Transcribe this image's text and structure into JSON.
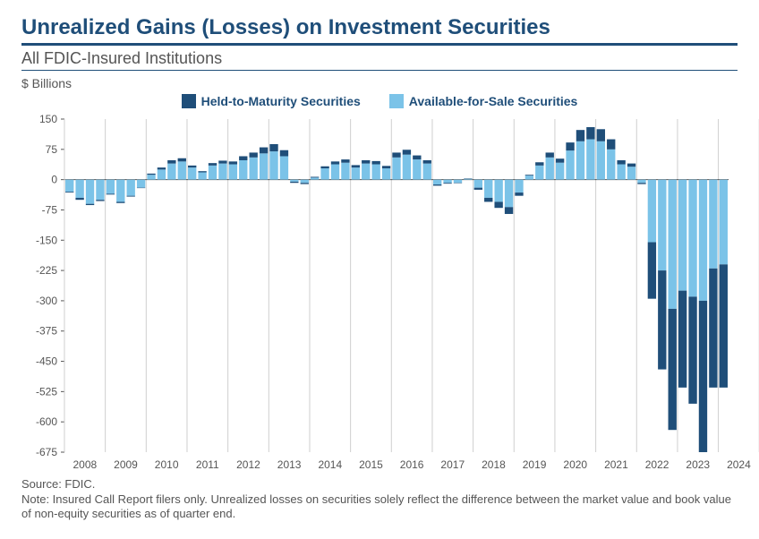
{
  "title": "Unrealized Gains (Losses) on Investment Securities",
  "subtitle": "All FDIC-Insured Institutions",
  "yaxis_title": "$ Billions",
  "legend": {
    "htm": {
      "label": "Held-to-Maturity Securities",
      "color": "#1f4e79"
    },
    "afs": {
      "label": "Available-for-Sale Securities",
      "color": "#7bc3e8"
    }
  },
  "footnote_source": "Source: FDIC.",
  "footnote_note": "Note: Insured Call Report filers only. Unrealized losses on securities solely reflect the difference between the market value and book value of non-equity securities as of quarter end.",
  "chart": {
    "type": "stacked_bar",
    "ylim": [
      -675,
      150
    ],
    "ytick_step": 75,
    "grid_color": "#cfcfcf",
    "background_color": "#ffffff",
    "axis_label_fontsize": 12,
    "axis_label_color": "#555555",
    "bar_gap_ratio": 0.18,
    "years": [
      2008,
      2009,
      2010,
      2011,
      2012,
      2013,
      2014,
      2015,
      2016,
      2017,
      2018,
      2019,
      2020,
      2021,
      2022,
      2023,
      2024
    ],
    "series": [
      {
        "afs": -30,
        "htm": -2
      },
      {
        "afs": -45,
        "htm": -5
      },
      {
        "afs": -60,
        "htm": -3
      },
      {
        "afs": -50,
        "htm": -3
      },
      {
        "afs": -35,
        "htm": -2
      },
      {
        "afs": -55,
        "htm": -3
      },
      {
        "afs": -40,
        "htm": -2
      },
      {
        "afs": -20,
        "htm": -1
      },
      {
        "afs": 12,
        "htm": 3
      },
      {
        "afs": 25,
        "htm": 5
      },
      {
        "afs": 40,
        "htm": 8
      },
      {
        "afs": 45,
        "htm": 8
      },
      {
        "afs": 30,
        "htm": 5
      },
      {
        "afs": 18,
        "htm": 3
      },
      {
        "afs": 35,
        "htm": 6
      },
      {
        "afs": 40,
        "htm": 7
      },
      {
        "afs": 38,
        "htm": 7
      },
      {
        "afs": 48,
        "htm": 10
      },
      {
        "afs": 55,
        "htm": 12
      },
      {
        "afs": 65,
        "htm": 15
      },
      {
        "afs": 70,
        "htm": 18
      },
      {
        "afs": 58,
        "htm": 15
      },
      {
        "afs": -5,
        "htm": -3
      },
      {
        "afs": -8,
        "htm": -3
      },
      {
        "afs": 5,
        "htm": 2
      },
      {
        "afs": 28,
        "htm": 5
      },
      {
        "afs": 38,
        "htm": 7
      },
      {
        "afs": 42,
        "htm": 8
      },
      {
        "afs": 30,
        "htm": 6
      },
      {
        "afs": 40,
        "htm": 8
      },
      {
        "afs": 38,
        "htm": 8
      },
      {
        "afs": 28,
        "htm": 6
      },
      {
        "afs": 55,
        "htm": 12
      },
      {
        "afs": 62,
        "htm": 12
      },
      {
        "afs": 50,
        "htm": 10
      },
      {
        "afs": 40,
        "htm": 8
      },
      {
        "afs": -12,
        "htm": -3
      },
      {
        "afs": -8,
        "htm": -2
      },
      {
        "afs": -8,
        "htm": -1
      },
      {
        "afs": 2,
        "htm": 1
      },
      {
        "afs": -20,
        "htm": -5
      },
      {
        "afs": -45,
        "htm": -10
      },
      {
        "afs": -55,
        "htm": -15
      },
      {
        "afs": -68,
        "htm": -17
      },
      {
        "afs": -32,
        "htm": -8
      },
      {
        "afs": 10,
        "htm": 2
      },
      {
        "afs": 35,
        "htm": 8
      },
      {
        "afs": 55,
        "htm": 12
      },
      {
        "afs": 42,
        "htm": 10
      },
      {
        "afs": 72,
        "htm": 20
      },
      {
        "afs": 95,
        "htm": 28
      },
      {
        "afs": 100,
        "htm": 30
      },
      {
        "afs": 95,
        "htm": 30
      },
      {
        "afs": 75,
        "htm": 25
      },
      {
        "afs": 38,
        "htm": 10
      },
      {
        "afs": 32,
        "htm": 8
      },
      {
        "afs": -8,
        "htm": -3
      },
      {
        "afs": -155,
        "htm": -140
      },
      {
        "afs": -225,
        "htm": -245
      },
      {
        "afs": -320,
        "htm": -300
      },
      {
        "afs": -275,
        "htm": -240
      },
      {
        "afs": -290,
        "htm": -265
      },
      {
        "afs": -300,
        "htm": -375
      },
      {
        "afs": -220,
        "htm": -295
      },
      {
        "afs": -210,
        "htm": -305
      }
    ]
  }
}
